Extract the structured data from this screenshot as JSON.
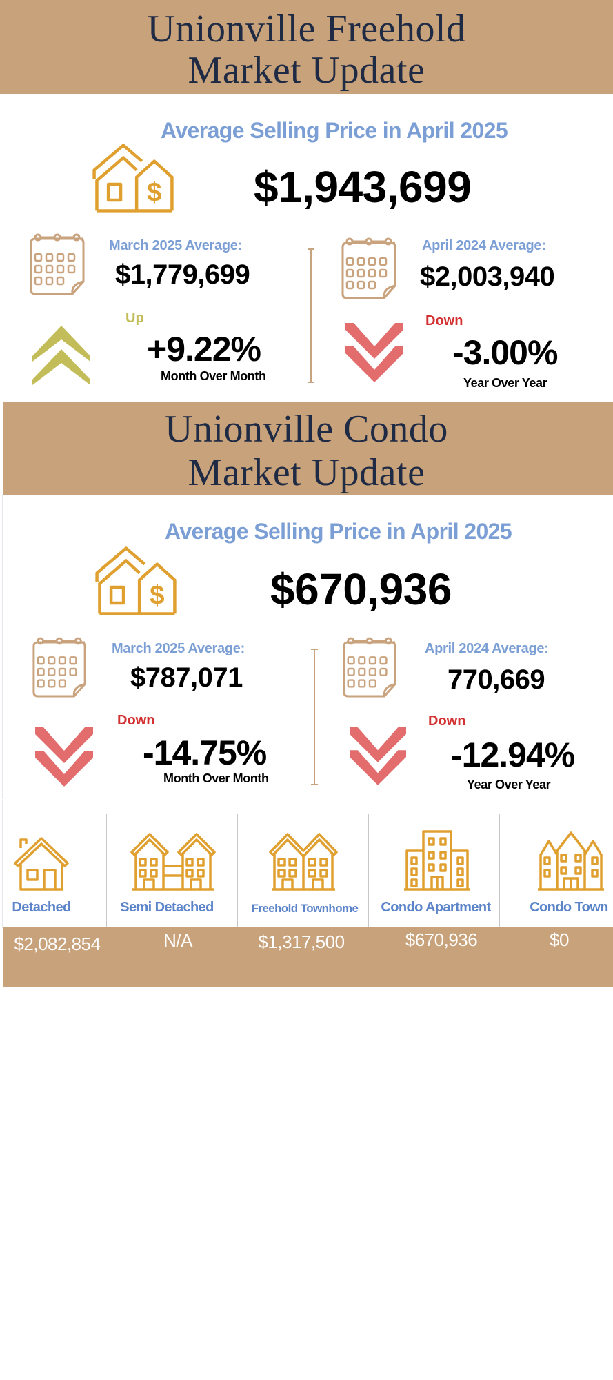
{
  "freehold": {
    "title_line1": "Unionville Freehold",
    "title_line2": "Market Update",
    "subheading": "Average Selling Price in April  2025",
    "average_price": "$1,943,699",
    "prev_month_label": "March 2025 Average:",
    "prev_month_value": "$1,779,699",
    "prev_year_label": "April 2024 Average:",
    "prev_year_value": "$2,003,940",
    "mom_direction": "Up",
    "mom_change": "+9.22%",
    "mom_caption": "Month Over Month",
    "yoy_direction": "Down",
    "yoy_change": "-3.00%",
    "yoy_caption": "Year Over Year"
  },
  "condo": {
    "title_line1": "Unionville Condo",
    "title_line2": "Market Update",
    "subheading": "Average Selling Price in April 2025",
    "average_price": "$670,936",
    "prev_month_label": "March 2025 Average:",
    "prev_month_value": "$787,071",
    "prev_year_label": "April 2024 Average:",
    "prev_year_value": "770,669",
    "mom_direction": "Down",
    "mom_change": "-14.75%",
    "mom_caption": "Month Over Month",
    "yoy_direction": "Down",
    "yoy_change": "-12.94%",
    "yoy_caption": "Year Over Year"
  },
  "property_types": [
    {
      "label": "Detached",
      "value": "$2,082,854",
      "icon": "detached-house-icon"
    },
    {
      "label": "Semi Detached",
      "value": "N/A",
      "icon": "semi-detached-icon"
    },
    {
      "label": "Freehold Townhome",
      "value": "$1,317,500",
      "icon": "townhome-icon"
    },
    {
      "label": "Condo Apartment",
      "value": "$670,936",
      "icon": "apartment-building-icon"
    },
    {
      "label": "Condo Town",
      "value": "$0",
      "icon": "condo-town-icon"
    }
  ],
  "colors": {
    "band": "#c8a27a",
    "title": "#1f2a44",
    "accent_blue": "#7b9fd5",
    "icon_gold": "#e0a030",
    "up_olive": "#c2bd58",
    "down_red": "#e36d6d",
    "down_label": "#d43232"
  }
}
